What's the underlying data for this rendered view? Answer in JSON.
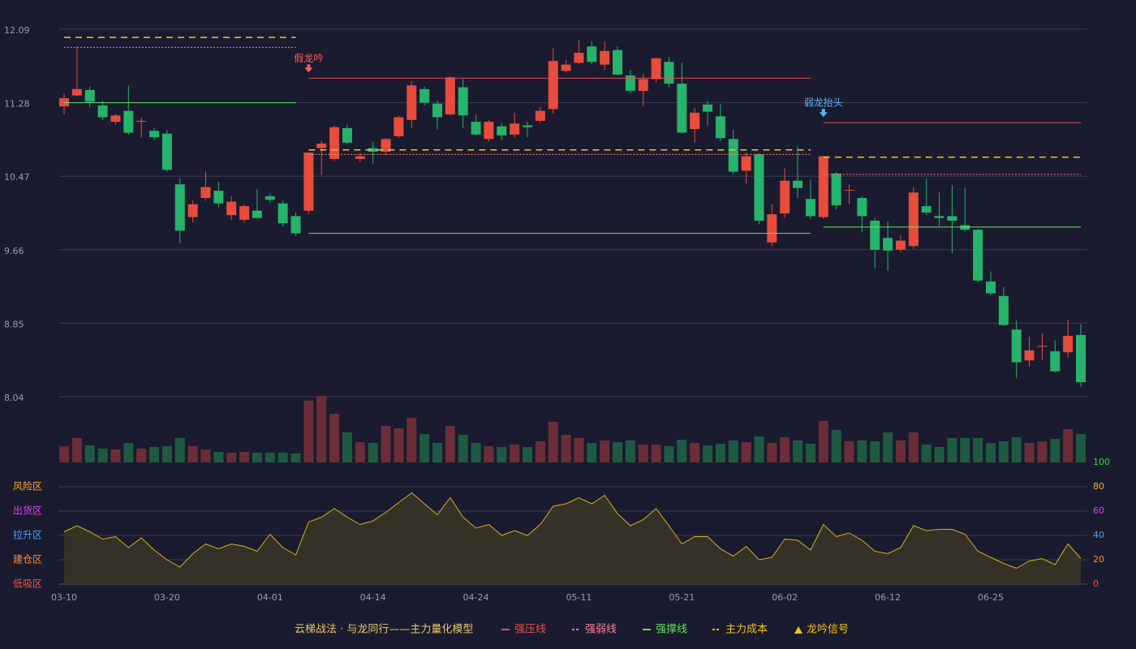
{
  "chart_data": [
    {
      "type": "candlestick",
      "categories": [
        "03-10",
        null,
        null,
        null,
        null,
        null,
        null,
        null,
        "03-20",
        null,
        null,
        null,
        null,
        null,
        null,
        null,
        "04-01",
        null,
        null,
        null,
        null,
        null,
        null,
        null,
        "04-14",
        null,
        null,
        null,
        null,
        null,
        null,
        null,
        "04-24",
        null,
        null,
        null,
        null,
        null,
        null,
        null,
        "05-11",
        null,
        null,
        null,
        null,
        null,
        null,
        null,
        "05-21",
        null,
        null,
        null,
        null,
        null,
        null,
        null,
        "06-02",
        null,
        null,
        null,
        null,
        null,
        null,
        null,
        "06-12",
        null,
        null,
        null,
        null,
        null,
        null,
        null,
        "06-25",
        null,
        null,
        null,
        null,
        null,
        null,
        null
      ],
      "open": [
        11.24,
        11.36,
        11.42,
        11.25,
        11.07,
        11.19,
        11.07,
        10.97,
        10.94,
        10.38,
        10.02,
        10.23,
        10.31,
        10.04,
        9.99,
        10.09,
        10.25,
        10.17,
        10.03,
        10.09,
        10.78,
        10.66,
        11.0,
        10.66,
        10.78,
        10.74,
        10.91,
        11.09,
        11.43,
        11.27,
        11.15,
        11.45,
        11.07,
        10.88,
        11.02,
        10.93,
        11.03,
        11.08,
        11.21,
        11.63,
        11.72,
        11.9,
        11.7,
        11.86,
        11.58,
        11.41,
        11.54,
        11.73,
        11.49,
        10.99,
        11.26,
        11.13,
        10.88,
        10.53,
        10.71,
        9.74,
        10.06,
        10.42,
        10.22,
        10.02,
        10.5,
        10.32,
        10.23,
        9.98,
        9.79,
        9.66,
        9.7,
        10.14,
        10.03,
        10.03,
        9.93,
        9.88,
        9.31,
        9.15,
        8.78,
        8.44,
        8.6,
        8.54,
        8.53,
        8.72
      ],
      "high": [
        11.38,
        11.9,
        11.46,
        11.3,
        11.16,
        11.47,
        11.12,
        11.0,
        10.98,
        10.45,
        10.2,
        10.52,
        10.41,
        10.25,
        10.16,
        10.33,
        10.28,
        10.2,
        10.07,
        10.73,
        10.86,
        11.03,
        11.04,
        10.72,
        10.85,
        10.89,
        11.14,
        11.52,
        11.46,
        11.31,
        11.57,
        11.54,
        11.15,
        11.09,
        11.06,
        11.17,
        11.07,
        11.23,
        11.88,
        11.75,
        11.97,
        11.96,
        11.95,
        11.9,
        11.64,
        11.6,
        11.78,
        11.78,
        11.72,
        11.22,
        11.3,
        11.27,
        10.98,
        10.73,
        10.72,
        10.16,
        10.56,
        10.8,
        10.43,
        10.69,
        10.52,
        10.38,
        10.25,
        10.01,
        9.97,
        9.82,
        10.35,
        10.45,
        10.29,
        10.37,
        10.34,
        9.89,
        9.42,
        9.25,
        8.88,
        8.7,
        8.74,
        8.66,
        8.89,
        8.84
      ],
      "low": [
        11.15,
        11.35,
        11.23,
        11.09,
        11.04,
        10.93,
        10.9,
        10.87,
        10.52,
        9.73,
        9.96,
        10.2,
        10.13,
        9.99,
        9.96,
        10.0,
        10.18,
        9.91,
        9.81,
        10.05,
        10.48,
        10.64,
        10.82,
        10.63,
        10.61,
        10.7,
        10.89,
        11.0,
        11.25,
        10.99,
        11.14,
        11.0,
        10.92,
        10.85,
        10.87,
        10.9,
        10.9,
        11.06,
        11.16,
        11.61,
        11.7,
        11.7,
        11.64,
        11.58,
        11.38,
        11.24,
        11.5,
        11.45,
        10.94,
        10.84,
        11.03,
        10.86,
        10.49,
        10.39,
        9.94,
        9.7,
        10.01,
        10.23,
        10.0,
        10.0,
        10.1,
        10.16,
        9.85,
        9.46,
        9.43,
        9.63,
        9.67,
        10.04,
        9.92,
        9.62,
        9.86,
        9.3,
        9.16,
        8.82,
        8.24,
        8.37,
        8.45,
        8.31,
        8.47,
        8.15
      ],
      "close": [
        11.33,
        11.43,
        11.29,
        11.12,
        11.14,
        10.95,
        11.08,
        10.9,
        10.54,
        9.87,
        10.16,
        10.35,
        10.17,
        10.19,
        10.14,
        10.01,
        10.21,
        9.95,
        9.84,
        10.73,
        10.83,
        11.01,
        10.84,
        10.69,
        10.74,
        10.88,
        11.12,
        11.47,
        11.28,
        11.12,
        11.56,
        11.14,
        10.93,
        11.07,
        10.92,
        11.05,
        11.01,
        11.19,
        11.74,
        11.7,
        11.83,
        11.73,
        11.85,
        11.59,
        11.41,
        11.54,
        11.77,
        11.49,
        10.95,
        11.17,
        11.18,
        10.89,
        10.52,
        10.69,
        9.98,
        10.05,
        10.42,
        10.34,
        10.03,
        10.69,
        10.15,
        10.32,
        10.03,
        9.66,
        9.65,
        9.76,
        10.29,
        10.07,
        10.01,
        9.98,
        9.88,
        9.32,
        9.18,
        8.83,
        8.42,
        8.55,
        8.6,
        8.32,
        8.71,
        8.2
      ],
      "up_color": "#e84c3d",
      "down_color": "#26b36b",
      "ylim": [
        8.04,
        12.09
      ],
      "yticks": [
        8.04,
        8.85,
        9.66,
        10.47,
        11.28,
        12.09
      ],
      "grid": true,
      "lines": [
        {
          "name": "强压线",
          "color": "#e84d4d",
          "style": "solid",
          "values": [
            null,
            null,
            null,
            null,
            null,
            null,
            null,
            null,
            null,
            null,
            null,
            null,
            null,
            null,
            null,
            null,
            null,
            null,
            null,
            11.55,
            11.55,
            11.55,
            11.55,
            11.55,
            11.55,
            11.55,
            11.55,
            11.55,
            11.55,
            11.55,
            11.55,
            11.55,
            11.55,
            11.55,
            11.55,
            11.55,
            11.55,
            11.55,
            11.55,
            11.55,
            11.55,
            11.55,
            11.55,
            11.55,
            11.55,
            11.55,
            11.55,
            11.55,
            11.55,
            11.55,
            11.55,
            11.55,
            11.55,
            11.55,
            11.55,
            11.55,
            11.55,
            11.55,
            11.55,
            11.06,
            11.06,
            11.06,
            11.06,
            11.06,
            11.06,
            11.06,
            11.06,
            11.06,
            11.06,
            11.06,
            11.06,
            11.06,
            11.06,
            11.06,
            11.06,
            11.06,
            11.06,
            11.06,
            11.06,
            11.06
          ]
        },
        {
          "name": "强弱线",
          "color": "#ff7f9f",
          "style": "dotted",
          "values": [
            11.89,
            11.89,
            11.89,
            11.89,
            11.89,
            11.89,
            11.89,
            11.89,
            11.89,
            11.89,
            11.89,
            11.89,
            11.89,
            11.89,
            11.89,
            11.89,
            11.89,
            11.89,
            11.89,
            10.71,
            10.71,
            10.71,
            10.71,
            10.71,
            10.71,
            10.71,
            10.71,
            10.71,
            10.71,
            10.71,
            10.71,
            10.71,
            10.71,
            10.71,
            10.71,
            10.71,
            10.71,
            10.71,
            10.71,
            10.71,
            10.71,
            10.71,
            10.71,
            10.71,
            10.71,
            10.71,
            10.71,
            10.71,
            10.71,
            10.71,
            10.71,
            10.71,
            10.71,
            10.71,
            10.71,
            10.71,
            10.71,
            10.71,
            10.71,
            10.49,
            10.49,
            10.49,
            10.49,
            10.49,
            10.49,
            10.49,
            10.49,
            10.49,
            10.49,
            10.49,
            10.49,
            10.49,
            10.49,
            10.49,
            10.49,
            10.49,
            10.49,
            10.49,
            10.49,
            10.49
          ]
        },
        {
          "name": "强撑线",
          "color": "#5ee65e",
          "style": "solid",
          "values": [
            11.28,
            11.28,
            11.28,
            11.28,
            11.28,
            11.28,
            11.28,
            11.28,
            11.28,
            11.28,
            11.28,
            11.28,
            11.28,
            11.28,
            11.28,
            11.28,
            11.28,
            11.28,
            11.28,
            9.84,
            9.84,
            9.84,
            9.84,
            9.84,
            9.84,
            9.84,
            9.84,
            9.84,
            9.84,
            9.84,
            9.84,
            9.84,
            9.84,
            9.84,
            9.84,
            9.84,
            9.84,
            9.84,
            9.84,
            9.84,
            9.84,
            9.84,
            9.84,
            9.84,
            9.84,
            9.84,
            9.84,
            9.84,
            9.84,
            9.84,
            9.84,
            9.84,
            9.84,
            9.84,
            9.84,
            9.84,
            9.84,
            9.84,
            9.84,
            9.91,
            9.91,
            9.91,
            9.91,
            9.91,
            9.91,
            9.91,
            9.91,
            9.91,
            9.91,
            9.91,
            9.91,
            9.91,
            9.91,
            9.91,
            9.91,
            9.91,
            9.91,
            9.91,
            9.91,
            9.91
          ]
        },
        {
          "name": "主力成本",
          "color": "#f5c518",
          "style": "dashed",
          "values": [
            12.0,
            12.0,
            12.0,
            12.0,
            12.0,
            12.0,
            12.0,
            12.0,
            12.0,
            12.0,
            12.0,
            12.0,
            12.0,
            12.0,
            12.0,
            12.0,
            12.0,
            12.0,
            12.0,
            10.76,
            10.76,
            10.76,
            10.76,
            10.76,
            10.76,
            10.76,
            10.76,
            10.76,
            10.76,
            10.76,
            10.76,
            10.76,
            10.76,
            10.76,
            10.76,
            10.76,
            10.76,
            10.76,
            10.76,
            10.76,
            10.76,
            10.76,
            10.76,
            10.76,
            10.76,
            10.76,
            10.76,
            10.76,
            10.76,
            10.76,
            10.76,
            10.76,
            10.76,
            10.76,
            10.76,
            10.76,
            10.76,
            10.76,
            10.76,
            10.68,
            10.68,
            10.68,
            10.68,
            10.68,
            10.68,
            10.68,
            10.68,
            10.68,
            10.68,
            10.68,
            10.68,
            10.68,
            10.68,
            10.68,
            10.68,
            10.68,
            10.68,
            10.68,
            10.68,
            10.68
          ]
        }
      ],
      "signal_name": "龙吟信号",
      "signal_color": "#f5c518",
      "signals": [
        null,
        null,
        null,
        null,
        null,
        null,
        null,
        null,
        null,
        null,
        null,
        null,
        null,
        null,
        null,
        null,
        null,
        null,
        null,
        {
          "label": "假龙吟",
          "color": "#ff5a5a"
        },
        null,
        null,
        null,
        null,
        null,
        null,
        null,
        null,
        null,
        null,
        null,
        null,
        null,
        null,
        null,
        null,
        null,
        null,
        null,
        null,
        null,
        null,
        null,
        null,
        null,
        null,
        null,
        null,
        null,
        null,
        null,
        null,
        null,
        null,
        null,
        null,
        null,
        null,
        null,
        {
          "label": "弱龙抬头",
          "color": "#5ab4ff"
        },
        null,
        null,
        null,
        null,
        null,
        null,
        null,
        null,
        null,
        null,
        null,
        null,
        null,
        null,
        null,
        null,
        null,
        null,
        null,
        null
      ],
      "caption": "云梯战法 · 与龙同行——主力量化模型"
    },
    {
      "type": "bar",
      "values": [
        20,
        30,
        21,
        17,
        16,
        24,
        17,
        19,
        20,
        30,
        20,
        16,
        13,
        12,
        13,
        12,
        12,
        12,
        11,
        76,
        82,
        60,
        37,
        25,
        24,
        45,
        42,
        55,
        35,
        24,
        45,
        34,
        24,
        20,
        19,
        22,
        19,
        26,
        50,
        34,
        30,
        24,
        27,
        25,
        27,
        22,
        22,
        20,
        28,
        24,
        21,
        23,
        27,
        25,
        32,
        24,
        31,
        27,
        23,
        51,
        40,
        26,
        27,
        26,
        37,
        27,
        37,
        22,
        19,
        30,
        30,
        30,
        24,
        26,
        31,
        24,
        26,
        29,
        41,
        35
      ],
      "up_color": "#6b2d38",
      "down_color": "#1e5a42"
    },
    {
      "type": "area",
      "values": [
        43,
        48,
        43,
        37,
        39,
        30,
        38,
        28,
        20,
        14,
        25,
        33,
        29,
        33,
        31,
        27,
        41,
        30,
        24,
        51,
        55,
        62,
        55,
        49,
        52,
        59,
        67,
        75,
        66,
        57,
        71,
        55,
        46,
        49,
        40,
        44,
        40,
        49,
        64,
        66,
        71,
        66,
        73,
        58,
        48,
        53,
        62,
        48,
        33,
        39,
        39,
        29,
        23,
        31,
        20,
        22,
        37,
        36,
        28,
        49,
        39,
        42,
        36,
        27,
        25,
        30,
        48,
        44,
        45,
        45,
        41,
        27,
        22,
        17,
        13,
        19,
        21,
        16,
        33,
        21
      ],
      "color": "#d4b020",
      "fill": "#3a3426",
      "ylim": [
        0,
        100
      ],
      "yticks": [
        0,
        20,
        40,
        60,
        80,
        100
      ],
      "tick_colors": [
        "#ff4d4d",
        "#ff8c3a",
        "#4d9fff",
        "#e040fb",
        "#ffaa33",
        "#33dd33"
      ],
      "zone_labels": [
        "低吸区",
        "建仓区",
        "拉升区",
        "出货区",
        "风险区"
      ]
    }
  ]
}
